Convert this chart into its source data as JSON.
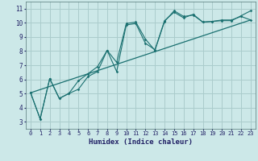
{
  "xlabel": "Humidex (Indice chaleur)",
  "bg_color": "#cce8e8",
  "grid_color": "#aacccc",
  "line_color": "#1a7070",
  "xlim": [
    -0.5,
    23.5
  ],
  "ylim": [
    2.5,
    11.5
  ],
  "xticks": [
    0,
    1,
    2,
    3,
    4,
    5,
    6,
    7,
    8,
    9,
    10,
    11,
    12,
    13,
    14,
    15,
    16,
    17,
    18,
    19,
    20,
    21,
    22,
    23
  ],
  "yticks": [
    3,
    4,
    5,
    6,
    7,
    8,
    9,
    10,
    11
  ],
  "line1_x": [
    0,
    1,
    2,
    3,
    4,
    5,
    6,
    7,
    8,
    9,
    10,
    11,
    12,
    13,
    14,
    15,
    16,
    17,
    18,
    19,
    20,
    21,
    22,
    23
  ],
  "line1_y": [
    5.05,
    3.2,
    6.05,
    4.65,
    5.0,
    5.3,
    6.2,
    6.55,
    8.05,
    7.2,
    9.95,
    10.05,
    8.85,
    8.05,
    10.1,
    10.85,
    10.45,
    10.55,
    10.05,
    10.1,
    10.15,
    10.15,
    10.5,
    10.85
  ],
  "line2_x": [
    0,
    1,
    2,
    3,
    4,
    5,
    6,
    7,
    8,
    9,
    10,
    11,
    12,
    13,
    14,
    15,
    16,
    17,
    18,
    19,
    20,
    21,
    22,
    23
  ],
  "line2_y": [
    5.05,
    3.2,
    6.05,
    4.65,
    5.0,
    5.9,
    6.4,
    6.9,
    8.05,
    6.55,
    9.85,
    9.95,
    8.55,
    8.1,
    10.15,
    10.75,
    10.35,
    10.6,
    10.05,
    10.1,
    10.2,
    10.2,
    10.45,
    10.2
  ],
  "line3_x": [
    0,
    23
  ],
  "line3_y": [
    5.05,
    10.2
  ]
}
